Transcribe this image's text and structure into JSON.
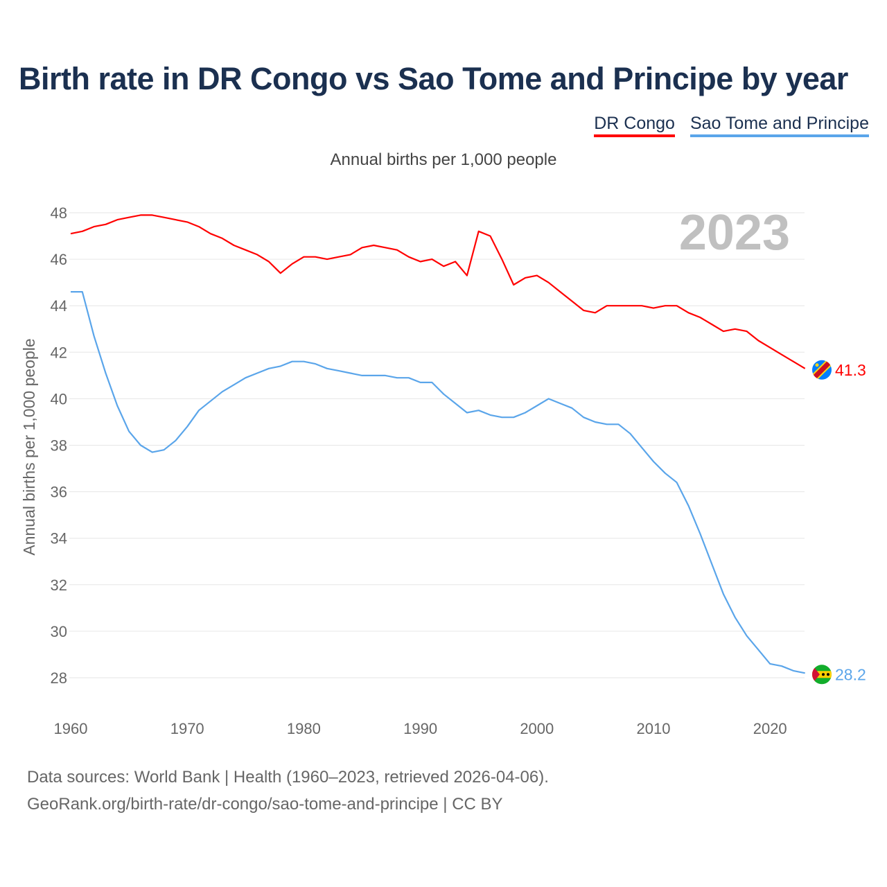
{
  "chart_data": {
    "type": "line",
    "title": "Birth rate in DR Congo vs Sao Tome and Principe by year",
    "subtitle": "Annual births per 1,000 people",
    "ylabel": "Annual births per 1,000 people",
    "xlabel": "",
    "year_label": "2023",
    "xlim": [
      1960,
      2023
    ],
    "ylim": [
      27,
      48.5
    ],
    "x_ticks": [
      1960,
      1970,
      1980,
      1990,
      2000,
      2010,
      2020
    ],
    "y_ticks": [
      28,
      30,
      32,
      34,
      36,
      38,
      40,
      42,
      44,
      46,
      48
    ],
    "grid": true,
    "legend_position": "top-right",
    "x": [
      1960,
      1961,
      1962,
      1963,
      1964,
      1965,
      1966,
      1967,
      1968,
      1969,
      1970,
      1971,
      1972,
      1973,
      1974,
      1975,
      1976,
      1977,
      1978,
      1979,
      1980,
      1981,
      1982,
      1983,
      1984,
      1985,
      1986,
      1987,
      1988,
      1989,
      1990,
      1991,
      1992,
      1993,
      1994,
      1995,
      1996,
      1997,
      1998,
      1999,
      2000,
      2001,
      2002,
      2003,
      2004,
      2005,
      2006,
      2007,
      2008,
      2009,
      2010,
      2011,
      2012,
      2013,
      2014,
      2015,
      2016,
      2017,
      2018,
      2019,
      2020,
      2021,
      2022,
      2023
    ],
    "series": [
      {
        "name": "DR Congo",
        "color": "#ff0000",
        "end_label": "41.3",
        "values": [
          47.1,
          47.2,
          47.4,
          47.5,
          47.7,
          47.8,
          47.9,
          47.9,
          47.8,
          47.7,
          47.6,
          47.4,
          47.1,
          46.9,
          46.6,
          46.4,
          46.2,
          45.9,
          45.4,
          45.8,
          46.1,
          46.1,
          46.0,
          46.1,
          46.2,
          46.5,
          46.6,
          46.5,
          46.4,
          46.1,
          45.9,
          46.0,
          45.7,
          45.9,
          45.3,
          47.2,
          47.0,
          46.0,
          44.9,
          45.2,
          45.3,
          45.0,
          44.6,
          44.2,
          43.8,
          43.7,
          44.0,
          44.0,
          44.0,
          44.0,
          43.9,
          44.0,
          44.0,
          43.7,
          43.5,
          43.2,
          42.9,
          43.0,
          42.9,
          42.5,
          42.2,
          41.9,
          41.6,
          41.3
        ]
      },
      {
        "name": "Sao Tome and Principe",
        "color": "#5aa5ea",
        "end_label": "28.2",
        "values": [
          44.6,
          44.6,
          42.7,
          41.1,
          39.7,
          38.6,
          38.0,
          37.7,
          37.8,
          38.2,
          38.8,
          39.5,
          39.9,
          40.3,
          40.6,
          40.9,
          41.1,
          41.3,
          41.4,
          41.6,
          41.6,
          41.5,
          41.3,
          41.2,
          41.1,
          41.0,
          41.0,
          41.0,
          40.9,
          40.9,
          40.7,
          40.7,
          40.2,
          39.8,
          39.4,
          39.5,
          39.3,
          39.2,
          39.2,
          39.4,
          39.7,
          40.0,
          39.8,
          39.6,
          39.2,
          39.0,
          38.9,
          38.9,
          38.5,
          37.9,
          37.3,
          36.8,
          36.4,
          35.4,
          34.2,
          32.9,
          31.6,
          30.6,
          29.8,
          29.2,
          28.6,
          28.5,
          28.3,
          28.2
        ]
      }
    ]
  },
  "footer": {
    "line1": "Data sources: World Bank | Health (1960–2023, retrieved 2026-04-06).",
    "line2": "GeoRank.org/birth-rate/dr-congo/sao-tome-and-principe | CC BY"
  }
}
